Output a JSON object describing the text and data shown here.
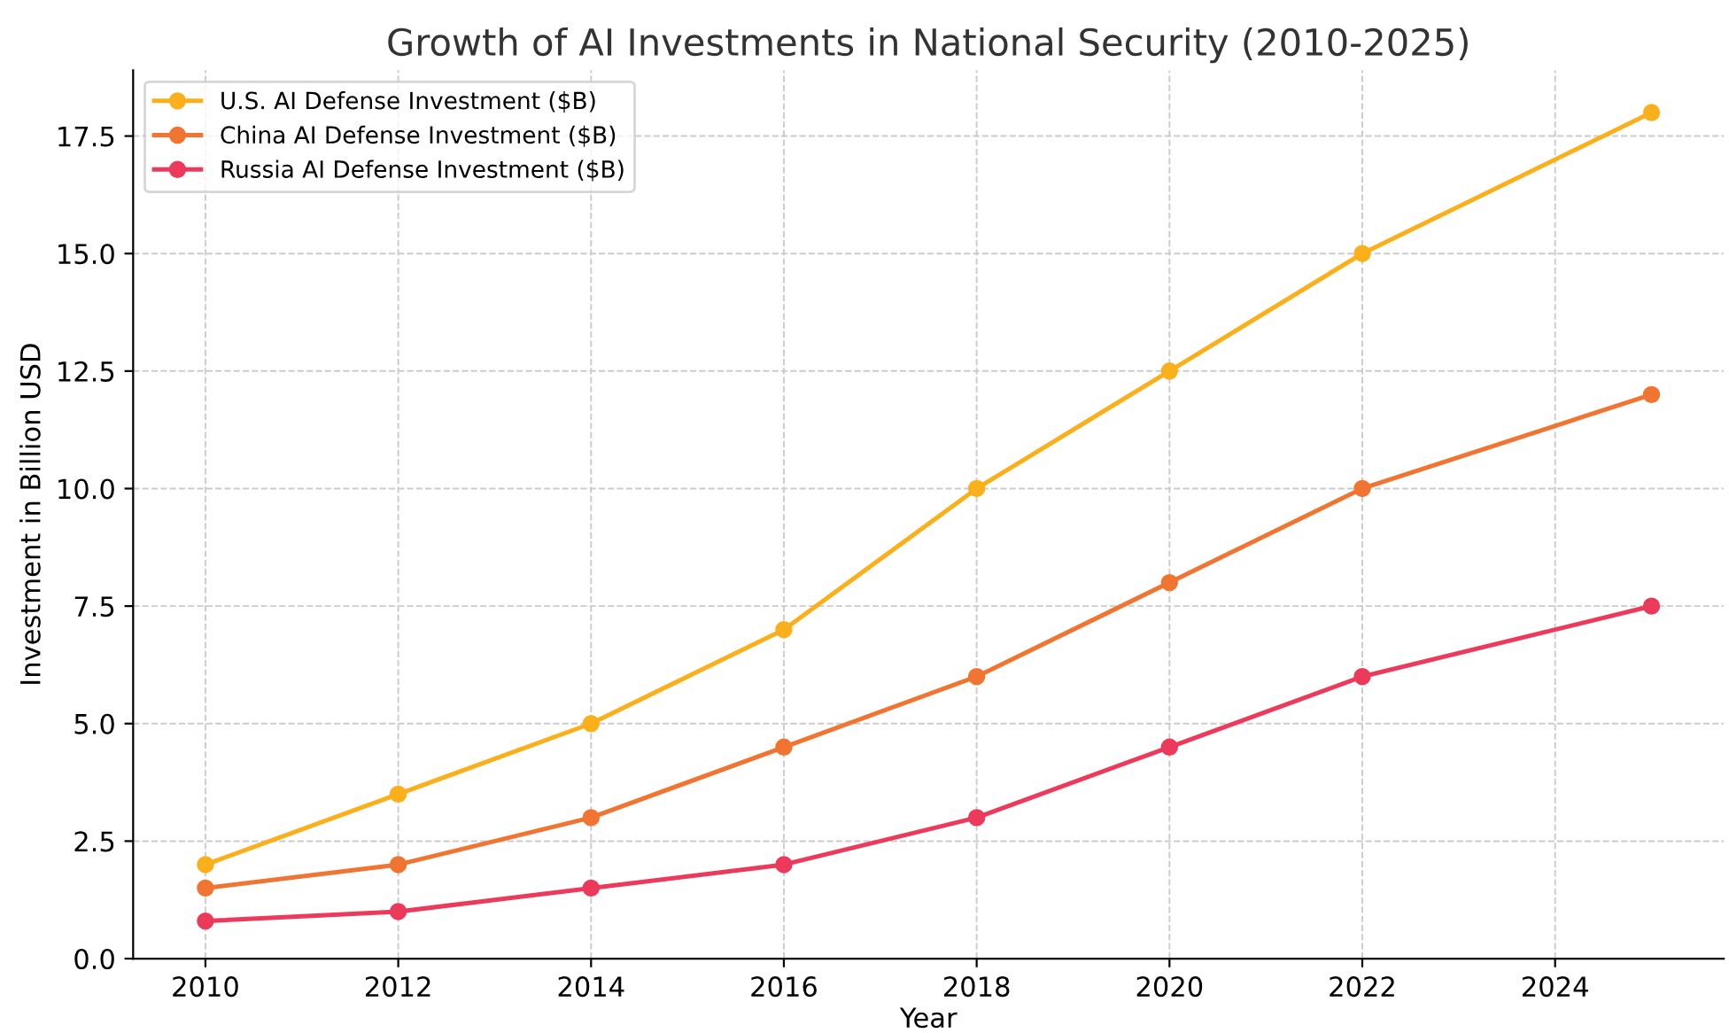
{
  "chart_data": {
    "type": "line",
    "title": "Growth of AI Investments in National Security (2010-2025)",
    "xlabel": "Year",
    "ylabel": "Investment in Billion USD",
    "x": [
      2010,
      2012,
      2014,
      2016,
      2018,
      2020,
      2022,
      2025
    ],
    "series": [
      {
        "name": "U.S. AI Defense Investment ($B)",
        "color": "#fab01c",
        "values": [
          2,
          3.5,
          5,
          7,
          10,
          12.5,
          15,
          18
        ]
      },
      {
        "name": "China AI Defense Investment ($B)",
        "color": "#f07432",
        "values": [
          1.5,
          2,
          3,
          4.5,
          6,
          8,
          10,
          12
        ]
      },
      {
        "name": "Russia AI Defense Investment ($B)",
        "color": "#eb3a5c",
        "values": [
          0.8,
          1,
          1.5,
          2,
          3,
          4.5,
          6,
          7.5
        ]
      }
    ],
    "xlim": [
      2009.25,
      2025.75
    ],
    "xticks": [
      2010,
      2012,
      2014,
      2016,
      2018,
      2020,
      2022,
      2024
    ],
    "ylim": [
      0,
      18.9
    ],
    "yticks": [
      {
        "value": 0,
        "label": "0.0"
      },
      {
        "value": 2.5,
        "label": "2.5"
      },
      {
        "value": 5,
        "label": "5.0"
      },
      {
        "value": 7.5,
        "label": "7.5"
      },
      {
        "value": 10,
        "label": "10.0"
      },
      {
        "value": 12.5,
        "label": "12.5"
      },
      {
        "value": 15,
        "label": "15.0"
      },
      {
        "value": 17.5,
        "label": "17.5"
      }
    ],
    "grid": true,
    "legend": "top left",
    "marker": "circle",
    "line_style": "solid"
  }
}
